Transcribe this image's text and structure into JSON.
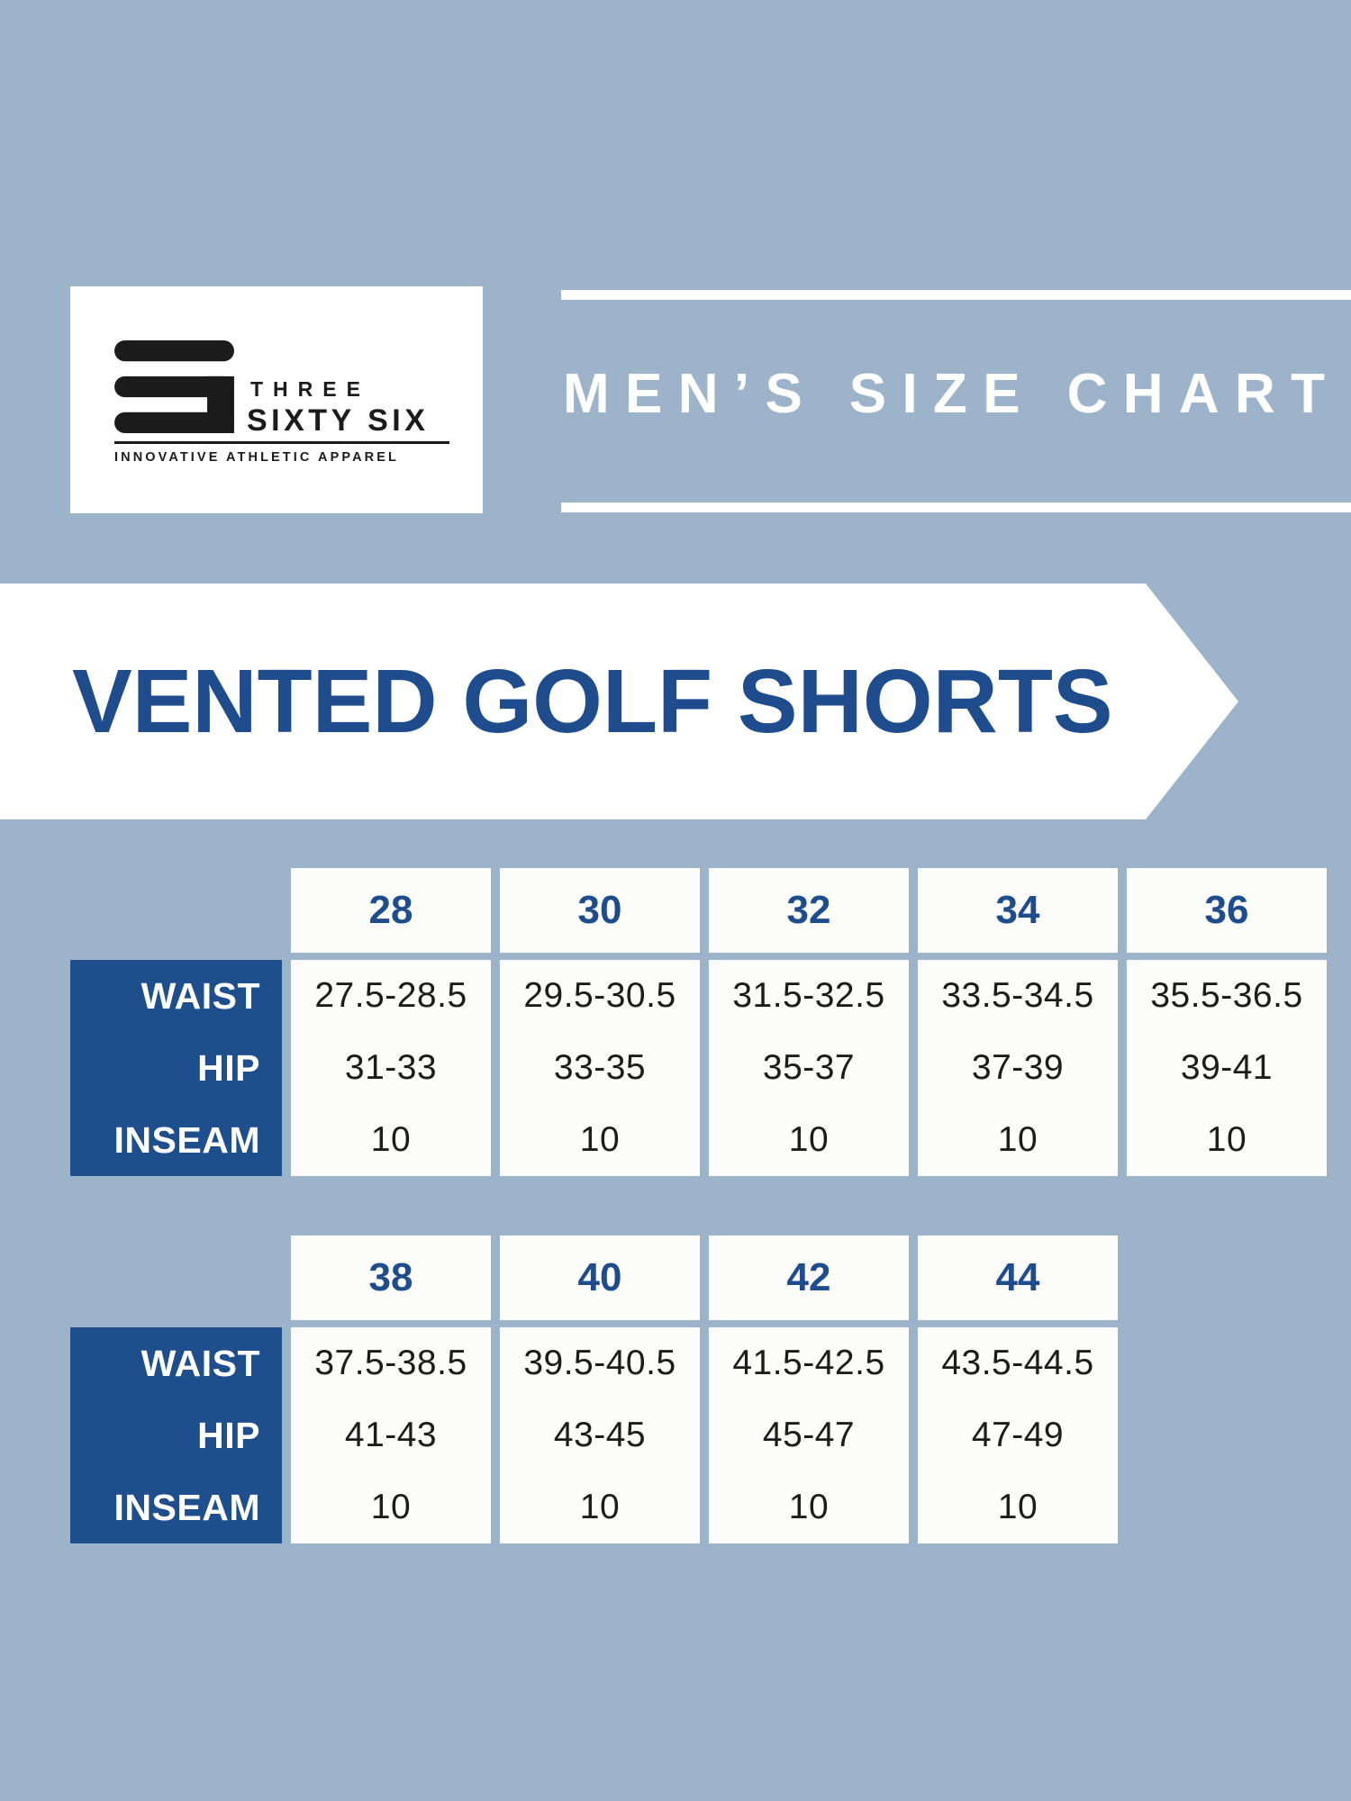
{
  "logo": {
    "brand_line1": "THREE",
    "brand_line2": "SIXTY SIX",
    "tagline": "INNOVATIVE ATHLETIC APPAREL"
  },
  "header": {
    "title": "MEN’S SIZE CHART"
  },
  "banner": {
    "title": "VENTED GOLF SHORTS"
  },
  "colors": {
    "background": "#9db3ca",
    "navy_text": "#1e4c8c",
    "block_navy": "#1f4e8c",
    "cell_white": "#fcfcfa",
    "white": "#ffffff",
    "logo_black": "#1b1b1b",
    "value_text": "#1c1c1c"
  },
  "chart_data": [
    {
      "type": "table",
      "title": "VENTED GOLF SHORTS — sizes 28-36",
      "columns": [
        "28",
        "30",
        "32",
        "34",
        "36"
      ],
      "rows": [
        {
          "label": "WAIST",
          "values": [
            "27.5-28.5",
            "29.5-30.5",
            "31.5-32.5",
            "33.5-34.5",
            "35.5-36.5"
          ]
        },
        {
          "label": "HIP",
          "values": [
            "31-33",
            "33-35",
            "35-37",
            "37-39",
            "39-41"
          ]
        },
        {
          "label": "INSEAM",
          "values": [
            "10",
            "10",
            "10",
            "10",
            "10"
          ]
        }
      ]
    },
    {
      "type": "table",
      "title": "VENTED GOLF SHORTS — sizes 38-44",
      "columns": [
        "38",
        "40",
        "42",
        "44"
      ],
      "rows": [
        {
          "label": "WAIST",
          "values": [
            "37.5-38.5",
            "39.5-40.5",
            "41.5-42.5",
            "43.5-44.5"
          ]
        },
        {
          "label": "HIP",
          "values": [
            "41-43",
            "43-45",
            "45-47",
            "47-49"
          ]
        },
        {
          "label": "INSEAM",
          "values": [
            "10",
            "10",
            "10",
            "10"
          ]
        }
      ]
    }
  ]
}
